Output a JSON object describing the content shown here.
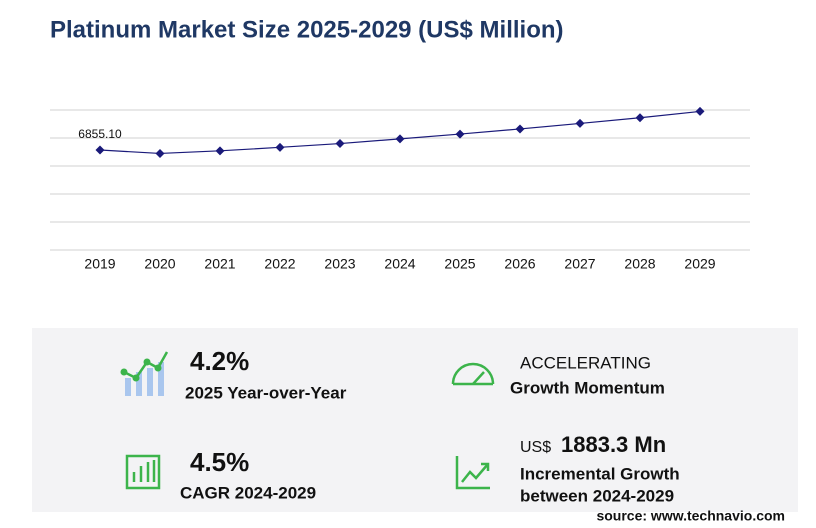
{
  "chart_data": {
    "type": "line",
    "title": "Platinum Market Size 2025-2029 (US$ Million)",
    "categories": [
      "2019",
      "2020",
      "2021",
      "2022",
      "2023",
      "2024",
      "2025",
      "2026",
      "2027",
      "2028",
      "2029"
    ],
    "values": [
      6855.1,
      6620,
      6800,
      7040,
      7300,
      7620,
      7950,
      8300,
      8680,
      9070,
      9503.3
    ],
    "value_labels": [
      "6855.10",
      null,
      null,
      null,
      null,
      null,
      null,
      null,
      null,
      null,
      null
    ],
    "color": "#1a1a7a",
    "ylim": [
      0,
      9600
    ],
    "yticks": [
      0,
      1920,
      3840,
      5760,
      7680,
      9600
    ],
    "grid": true
  },
  "stats": [
    {
      "value": "4.2%",
      "label": "2025 Year-over-Year"
    },
    {
      "value": "ACCELERATING",
      "label": "Growth Momentum"
    },
    {
      "value": "4.5%",
      "label": "CAGR 2024-2029"
    },
    {
      "prefix": "US$",
      "value": "1883.3 Mn",
      "label": "Incremental Growth",
      "label2": "between 2024-2029"
    }
  ],
  "source": "source: www.technavio.com"
}
